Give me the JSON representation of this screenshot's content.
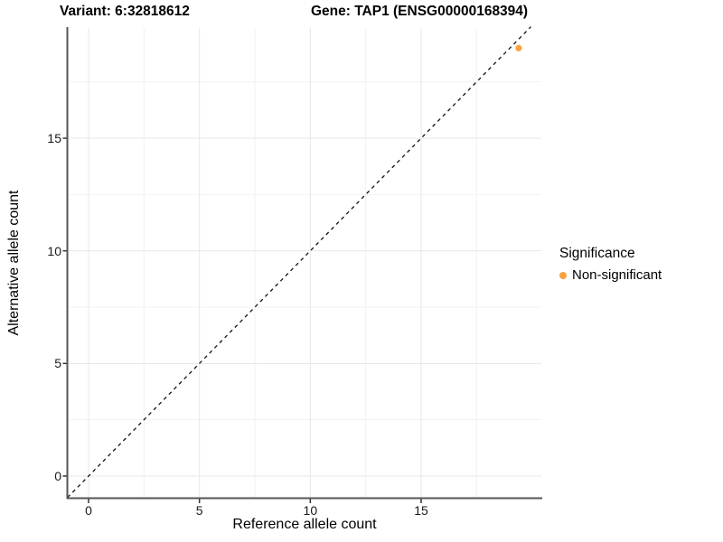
{
  "header": {
    "variant_title": "Variant: 6:32818612",
    "gene_title": "Gene: TAP1 (ENSG00000168394)"
  },
  "axes": {
    "x_label": "Reference allele count",
    "y_label": "Alternative allele count",
    "x_tick_labels": [
      "0",
      "5",
      "10",
      "15"
    ],
    "y_tick_labels": [
      "0",
      "5",
      "10",
      "15"
    ]
  },
  "legend": {
    "title": "Significance",
    "entries": [
      {
        "label": "Non-significant",
        "color": "#F9A242"
      }
    ]
  },
  "chart_data": {
    "type": "scatter",
    "title": "Variant: 6:32818612 | Gene: TAP1 (ENSG00000168394)",
    "xlabel": "Reference allele count",
    "ylabel": "Alternative allele count",
    "x_ticks": [
      0,
      5,
      10,
      15
    ],
    "y_ticks": [
      0,
      5,
      10,
      15
    ],
    "x_minor_ticks": [
      2.5,
      7.5,
      12.5,
      17.5
    ],
    "y_minor_ticks": [
      2.5,
      7.5,
      12.5,
      17.5
    ],
    "xlim": [
      -0.95,
      20.4
    ],
    "ylim": [
      -0.95,
      19.95
    ],
    "grid": true,
    "legend_position": "right",
    "identity_line": {
      "equation": "y = x",
      "style": "dashed",
      "color": "#000000"
    },
    "series": [
      {
        "name": "Non-significant",
        "color": "#F9A242",
        "points": [
          {
            "x": 19.4,
            "y": 19.0
          }
        ]
      }
    ],
    "colors": {
      "point": "#F9A242",
      "grid_major": "#e7e7e7",
      "grid_minor": "#f2f2f2",
      "axis_line": "#555555",
      "tick_mark": "#333333",
      "background": "#ffffff"
    }
  }
}
